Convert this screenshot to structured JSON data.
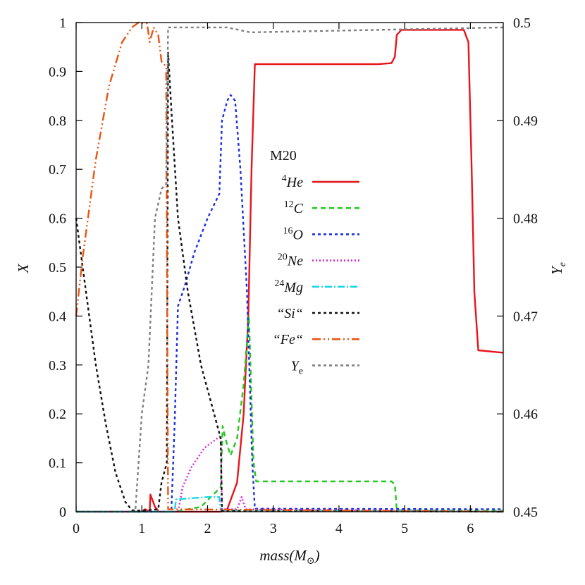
{
  "chart_data": {
    "type": "line",
    "title": "",
    "xlabel": "mass(M_⊙)",
    "ylabel_left": "X",
    "ylabel_right": "Y_e",
    "xlim": [
      0,
      6.5
    ],
    "ylim_left": [
      0,
      1
    ],
    "ylim_right": [
      0.45,
      0.5
    ],
    "x_ticks": [
      0,
      1,
      2,
      3,
      4,
      5,
      6
    ],
    "y_ticks_left": [
      0,
      0.1,
      0.2,
      0.3,
      0.4,
      0.5,
      0.6,
      0.7,
      0.8,
      0.9,
      1
    ],
    "y_ticks_right": [
      0.45,
      0.46,
      0.47,
      0.48,
      0.49,
      0.5
    ],
    "y_ticks_left_labels": [
      "0",
      "0.1",
      "0.2",
      "0.3",
      "0.4",
      "0.5",
      "0.6",
      "0.7",
      "0.8",
      "0.9",
      "1"
    ],
    "y_ticks_right_labels": [
      "0.45",
      "0.46",
      "0.47",
      "0.48",
      "0.49",
      "0.5"
    ],
    "grid": false,
    "legend_title": "M20",
    "legend_placement": "center-right",
    "series": [
      {
        "name": "4He",
        "sup": "4",
        "base": "He",
        "color": "#e8141c",
        "dash": "",
        "axis": "left",
        "points": [
          [
            0,
            0
          ],
          [
            1.0,
            0.0
          ],
          [
            1.05,
            0.005
          ],
          [
            1.12,
            0
          ],
          [
            1.13,
            0.035
          ],
          [
            1.2,
            0.01
          ],
          [
            1.26,
            0
          ],
          [
            1.45,
            0
          ],
          [
            2.2,
            0
          ],
          [
            2.3,
            0.005
          ],
          [
            2.45,
            0.06
          ],
          [
            2.55,
            0.2
          ],
          [
            2.62,
            0.4
          ],
          [
            2.67,
            0.7
          ],
          [
            2.72,
            0.915
          ],
          [
            3.5,
            0.915
          ],
          [
            4.6,
            0.915
          ],
          [
            4.8,
            0.917
          ],
          [
            4.85,
            0.93
          ],
          [
            4.88,
            0.975
          ],
          [
            4.95,
            0.985
          ],
          [
            5.9,
            0.985
          ],
          [
            5.97,
            0.96
          ],
          [
            6.02,
            0.7
          ],
          [
            6.06,
            0.45
          ],
          [
            6.12,
            0.33
          ],
          [
            6.5,
            0.325
          ]
        ]
      },
      {
        "name": "12C",
        "sup": "12",
        "base": "C",
        "color": "#22c922",
        "dash": "7,5",
        "axis": "left",
        "points": [
          [
            0,
            0
          ],
          [
            1.5,
            0
          ],
          [
            1.9,
            0.01
          ],
          [
            2.2,
            0.05
          ],
          [
            2.23,
            0.175
          ],
          [
            2.27,
            0.15
          ],
          [
            2.35,
            0.115
          ],
          [
            2.45,
            0.15
          ],
          [
            2.55,
            0.26
          ],
          [
            2.63,
            0.4
          ],
          [
            2.7,
            0.1
          ],
          [
            2.74,
            0.062
          ],
          [
            4.8,
            0.062
          ],
          [
            4.85,
            0.055
          ],
          [
            4.88,
            0.003
          ],
          [
            6.5,
            0.002
          ]
        ]
      },
      {
        "name": "16O",
        "sup": "16",
        "base": "O",
        "color": "#1a2ee0",
        "dash": "4,4",
        "axis": "left",
        "points": [
          [
            0,
            0
          ],
          [
            1.4,
            0
          ],
          [
            1.45,
            0.005
          ],
          [
            1.5,
            0.18
          ],
          [
            1.55,
            0.42
          ],
          [
            1.65,
            0.46
          ],
          [
            1.8,
            0.53
          ],
          [
            2.0,
            0.6
          ],
          [
            2.18,
            0.65
          ],
          [
            2.22,
            0.8
          ],
          [
            2.3,
            0.84
          ],
          [
            2.35,
            0.852
          ],
          [
            2.42,
            0.84
          ],
          [
            2.5,
            0.7
          ],
          [
            2.6,
            0.45
          ],
          [
            2.68,
            0.1
          ],
          [
            2.72,
            0.006
          ],
          [
            6.5,
            0.005
          ]
        ]
      },
      {
        "name": "20Ne",
        "sup": "20",
        "base": "Ne",
        "color": "#e020d8",
        "dash": "2,3",
        "axis": "left",
        "points": [
          [
            0,
            0
          ],
          [
            1.55,
            0
          ],
          [
            1.58,
            0.02
          ],
          [
            1.62,
            0.05
          ],
          [
            1.75,
            0.09
          ],
          [
            1.95,
            0.13
          ],
          [
            2.2,
            0.155
          ],
          [
            2.22,
            0.005
          ],
          [
            2.45,
            0.005
          ],
          [
            2.52,
            0.03
          ],
          [
            2.58,
            0.005
          ],
          [
            6.5,
            0
          ]
        ]
      },
      {
        "name": "24Mg",
        "sup": "24",
        "base": "Mg",
        "color": "#18d7e6",
        "dash": "10,3,2,3",
        "axis": "left",
        "points": [
          [
            0,
            0
          ],
          [
            1.5,
            0
          ],
          [
            1.52,
            0.025
          ],
          [
            1.8,
            0.028
          ],
          [
            2.0,
            0.03
          ],
          [
            2.18,
            0.03
          ],
          [
            2.2,
            0.003
          ],
          [
            6.5,
            0
          ]
        ]
      },
      {
        "name": "Si",
        "text": "“Si“",
        "color": "#111111",
        "dash": "4,4",
        "axis": "left",
        "points": [
          [
            0,
            0.6
          ],
          [
            0.1,
            0.5
          ],
          [
            0.2,
            0.4
          ],
          [
            0.3,
            0.3
          ],
          [
            0.45,
            0.18
          ],
          [
            0.6,
            0.08
          ],
          [
            0.75,
            0.02
          ],
          [
            0.85,
            0.003
          ],
          [
            1.0,
            0.002
          ],
          [
            1.25,
            0.005
          ],
          [
            1.3,
            0.06
          ],
          [
            1.38,
            0.1
          ],
          [
            1.4,
            0.94
          ],
          [
            1.45,
            0.82
          ],
          [
            1.55,
            0.6
          ],
          [
            1.7,
            0.45
          ],
          [
            1.9,
            0.3
          ],
          [
            2.1,
            0.2
          ],
          [
            2.2,
            0.15
          ],
          [
            2.22,
            0.002
          ],
          [
            6.5,
            0
          ]
        ]
      },
      {
        "name": "Fe",
        "text": "“Fe“",
        "color": "#ea5510",
        "dash": "12,4,2,4,2,4",
        "axis": "left",
        "points": [
          [
            0,
            0.4
          ],
          [
            0.1,
            0.52
          ],
          [
            0.3,
            0.72
          ],
          [
            0.5,
            0.87
          ],
          [
            0.7,
            0.96
          ],
          [
            0.85,
            0.99
          ],
          [
            0.95,
            1.0
          ],
          [
            1.08,
            0.998
          ],
          [
            1.12,
            0.96
          ],
          [
            1.18,
            0.99
          ],
          [
            1.25,
            0.975
          ],
          [
            1.3,
            0.92
          ],
          [
            1.37,
            0.91
          ],
          [
            1.4,
            0.005
          ],
          [
            6.5,
            0
          ]
        ]
      },
      {
        "name": "Ye",
        "base": "Y",
        "sub": "e",
        "color": "#808080",
        "dash": "4,4",
        "axis": "right",
        "points": [
          [
            0,
            0.45
          ],
          [
            0.8,
            0.45
          ],
          [
            0.9,
            0.45
          ],
          [
            0.95,
            0.455
          ],
          [
            1.0,
            0.46
          ],
          [
            1.1,
            0.465
          ],
          [
            1.2,
            0.48
          ],
          [
            1.3,
            0.483
          ],
          [
            1.37,
            0.4835
          ],
          [
            1.4,
            0.4995
          ],
          [
            2.3,
            0.4995
          ],
          [
            2.65,
            0.499
          ],
          [
            6.5,
            0.4995
          ]
        ]
      }
    ]
  }
}
